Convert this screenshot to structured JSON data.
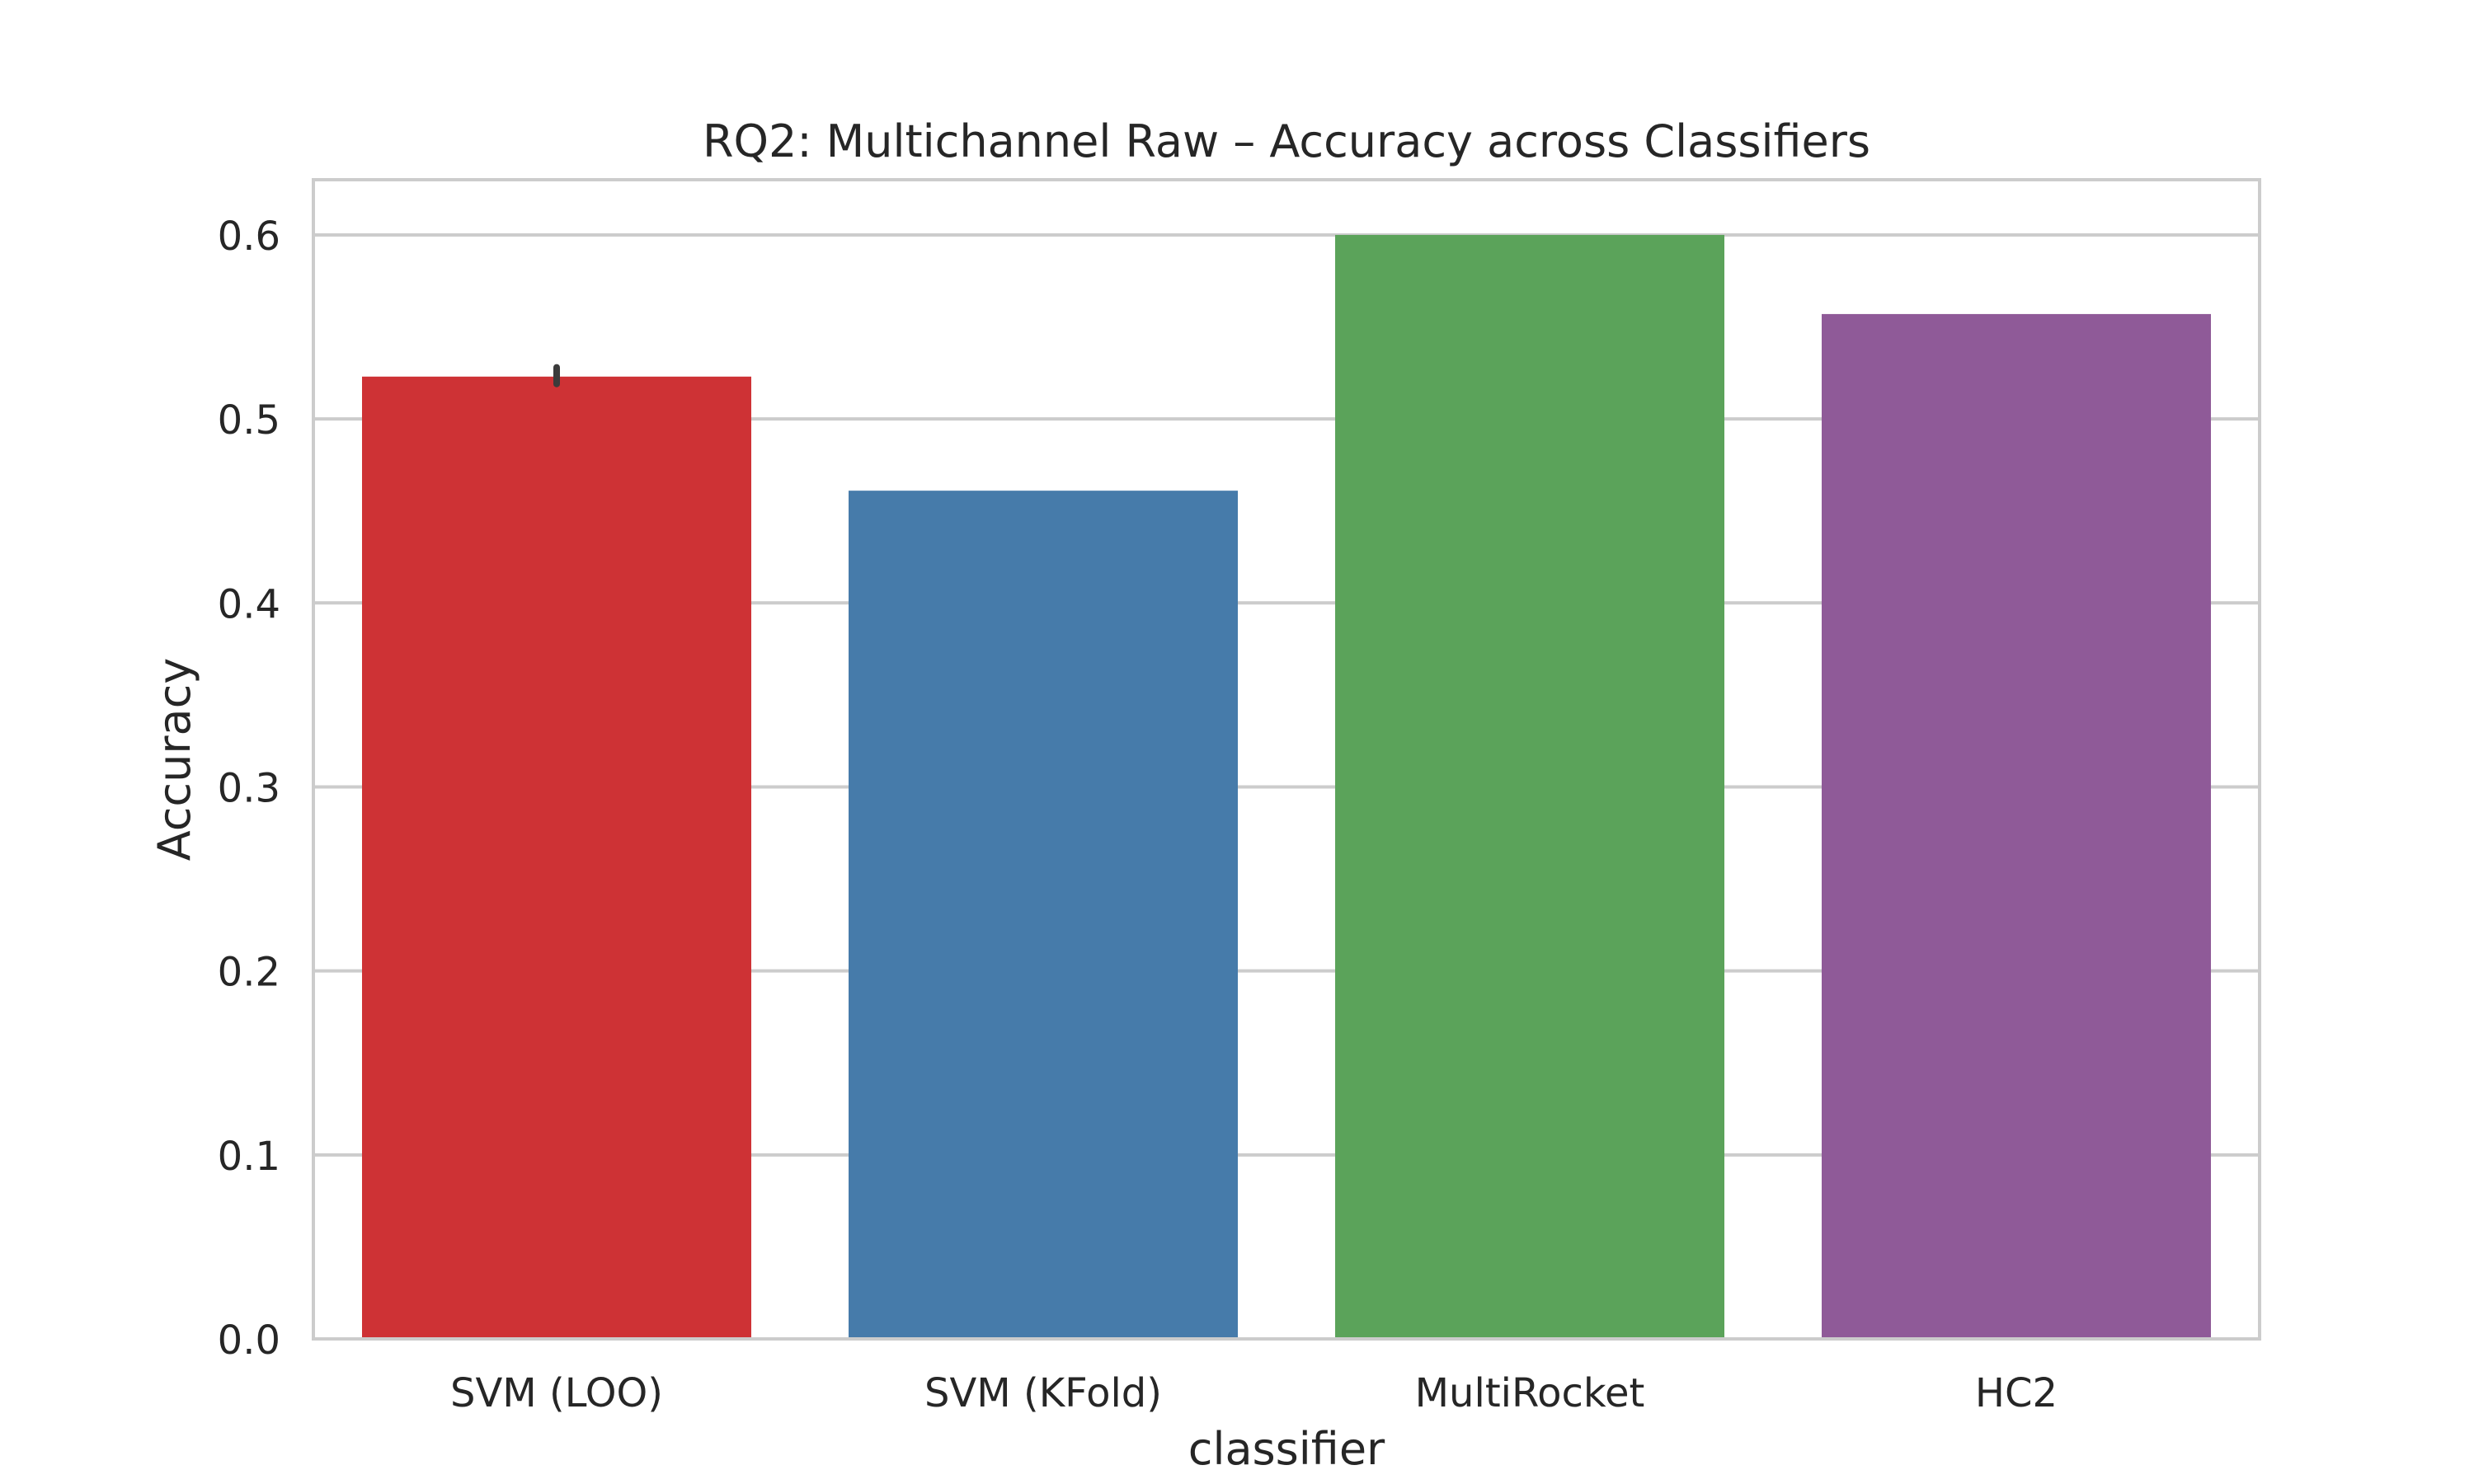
{
  "chart_data": {
    "type": "bar",
    "title": "RQ2: Multichannel Raw – Accuracy across Classifiers",
    "xlabel": "classifier",
    "ylabel": "Accuracy",
    "categories": [
      "SVM (LOO)",
      "SVM (KFold)",
      "MultiRocket",
      "HC2"
    ],
    "values": [
      0.523,
      0.461,
      0.6,
      0.557
    ],
    "error_bars": [
      [
        0.519,
        0.528
      ],
      null,
      null,
      null
    ],
    "colors": [
      "#ce3235",
      "#467baa",
      "#5ba35a",
      "#8f5a98"
    ],
    "ylim": [
      0,
      0.63
    ],
    "yticks": [
      0.0,
      0.1,
      0.2,
      0.3,
      0.4,
      0.5,
      0.6
    ],
    "ytick_labels": [
      "0.0",
      "0.1",
      "0.2",
      "0.3",
      "0.4",
      "0.5",
      "0.6"
    ],
    "grid": true,
    "grid_axis": "y",
    "legend": "none"
  }
}
